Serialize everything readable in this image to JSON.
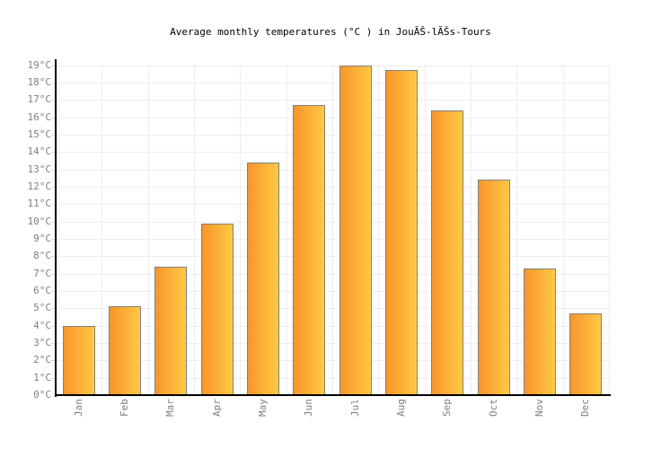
{
  "title": "Average monthly temperatures (°C ) in JouĂŠ-lĂŠs-Tours",
  "chart_data": {
    "type": "bar",
    "title": "Average monthly temperatures (°C ) in JouĂŠ-lĂŠs-Tours",
    "categories": [
      "Jan",
      "Feb",
      "Mar",
      "Apr",
      "May",
      "Jun",
      "Jul",
      "Aug",
      "Sep",
      "Oct",
      "Nov",
      "Dec"
    ],
    "values": [
      4,
      5.1,
      7.4,
      9.9,
      13.4,
      16.7,
      19,
      18.7,
      16.4,
      12.4,
      7.3,
      4.7
    ],
    "unit": "°C",
    "ylim": [
      0,
      19
    ],
    "ytick_step": 1,
    "ytick_labels": [
      "0°C",
      "1°C",
      "2°C",
      "3°C",
      "4°C",
      "5°C",
      "6°C",
      "7°C",
      "8°C",
      "9°C",
      "10°C",
      "11°C",
      "12°C",
      "13°C",
      "14°C",
      "15°C",
      "16°C",
      "17°C",
      "18°C",
      "19°C"
    ],
    "xtick_rotation": -90,
    "grid": true,
    "legend": false,
    "colors": {
      "bar_gradient_left": "#F8952C",
      "bar_gradient_right": "#FFC944",
      "bar_border": "#808080",
      "gridline": "#ededed",
      "tick": "#dddddd",
      "axis": "#000000",
      "tick_label": "#7f7f7f",
      "title_text": "#000000",
      "background": "#ffffff"
    }
  }
}
